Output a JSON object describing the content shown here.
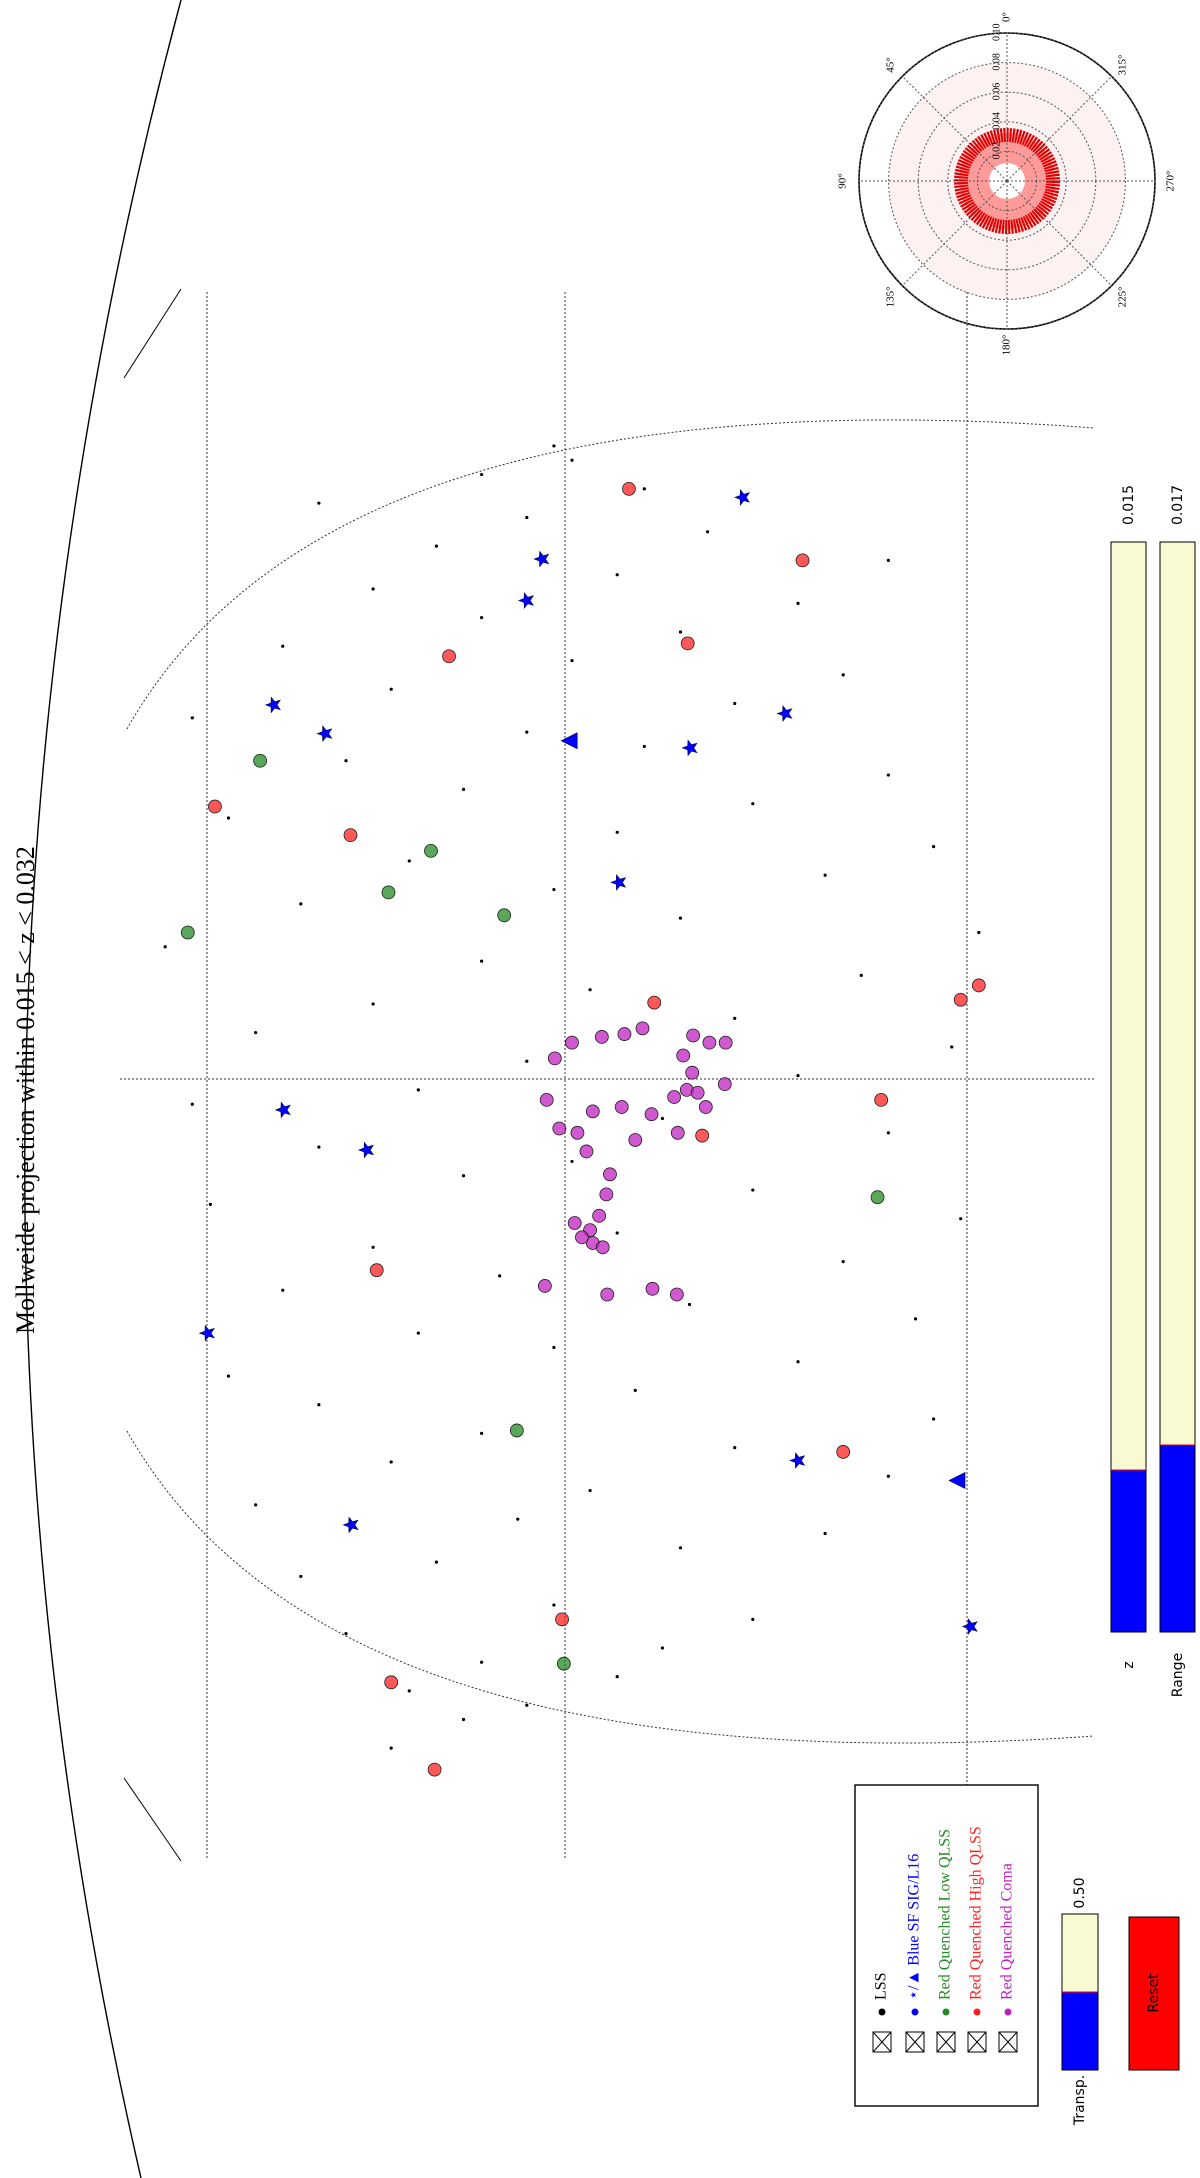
{
  "chart_data": {
    "type": "scatter",
    "title": "Mollweide projection within 0.015 < z < 0.032",
    "xlim": [
      0,
      100
    ],
    "ylim": [
      0,
      100
    ],
    "series": [
      {
        "name": "LSS",
        "color": "#000000",
        "marker": "o",
        "x": [
          6,
          8,
          9,
          10,
          11,
          12,
          13,
          14,
          15,
          16,
          18,
          19,
          20,
          21,
          22,
          23,
          24,
          25,
          26,
          27,
          28,
          29,
          30,
          31,
          32,
          33,
          34,
          35,
          36,
          37,
          38,
          39,
          40,
          41,
          42,
          43,
          44,
          45,
          46,
          47,
          48,
          49,
          50,
          51,
          52,
          53,
          54,
          55,
          56,
          57,
          58,
          59,
          60,
          61,
          62,
          63,
          64,
          65,
          66,
          67,
          68,
          69,
          70,
          71,
          72,
          73,
          74,
          75,
          76,
          77,
          78,
          79,
          80,
          81,
          82,
          83,
          84,
          85,
          86,
          87,
          88,
          89,
          90,
          91,
          92,
          93,
          94,
          95,
          96,
          97
        ],
        "y": [
          30,
          38,
          45,
          32,
          55,
          40,
          60,
          25,
          70,
          48,
          20,
          35,
          62,
          78,
          44,
          15,
          52,
          85,
          30,
          68,
          40,
          90,
          22,
          57,
          12,
          75,
          48,
          33,
          88,
          63,
          18,
          42,
          80,
          28,
          55,
          93,
          10,
          70,
          38,
          50,
          22,
          85,
          60,
          8,
          33,
          75,
          45,
          92,
          15,
          68,
          28,
          52,
          82,
          40,
          5,
          95,
          62,
          20,
          48,
          78,
          32,
          90,
          55,
          12,
          70,
          38,
          85,
          25,
          58,
          45,
          8,
          68,
          30,
          80,
          50,
          18,
          62,
          40,
          75,
          28,
          55,
          85,
          35,
          65,
          45,
          22,
          58,
          40,
          50,
          48
        ]
      },
      {
        "name": "⋆/▲ Blue SF SIG/L16",
        "color": "#0000ff",
        "markers": [
          "*",
          "*",
          "*",
          "*",
          "*",
          "*",
          "*",
          "*",
          "*",
          "*",
          "*",
          "*",
          "*",
          "*",
          "^",
          "^"
        ],
        "x": [
          93.4,
          89.1,
          86.2,
          78.3,
          75.9,
          78.9,
          76.9,
          66.5,
          50.6,
          47.8,
          35.0,
          26.1,
          21.6,
          14.5,
          76.4,
          24.7
        ],
        "y": [
          68.9,
          46.7,
          45.0,
          73.6,
          63.1,
          17.0,
          22.7,
          55.2,
          18.1,
          27.3,
          9.7,
          75.0,
          25.6,
          94.1,
          49.8,
          92.7
        ]
      },
      {
        "name": "Red Quenched Low QLSS",
        "color": "#228b22",
        "marker": "o",
        "x": [
          75.0,
          68.7,
          65.8,
          64.2,
          63.0,
          44.5,
          28.2,
          11.9
        ],
        "y": [
          15.5,
          34.4,
          29.7,
          42.5,
          7.5,
          83.8,
          43.9,
          49.1
        ]
      },
      {
        "name": "Red Quenched High QLSS",
        "color": "#ff2020",
        "marker": "o",
        "x": [
          94.0,
          89.0,
          83.2,
          82.3,
          71.8,
          69.8,
          58.1,
          58.3,
          59.3,
          48.8,
          51.3,
          39.4,
          26.7,
          15.0,
          10.6,
          4.5
        ],
        "y": [
          56.3,
          75.5,
          62.8,
          36.4,
          10.5,
          25.5,
          59.1,
          93.0,
          95.0,
          64.4,
          84.2,
          28.4,
          80.0,
          48.9,
          30.0,
          34.8
        ]
      },
      {
        "name": "Red Quenched Coma",
        "color": "#c020c0",
        "marker": "o",
        "x": [
          55.8,
          55.3,
          55.3,
          54.4,
          53.2,
          52.0,
          51.8,
          52.4,
          50.8,
          51.5,
          56.3,
          55.9,
          55.7,
          55.3,
          54.2,
          51.3,
          49.3,
          49.0,
          47.7,
          50.5,
          50.8,
          50.3,
          48.5,
          49.0,
          46.1,
          44.7,
          43.2,
          42.2,
          41.3,
          41.7,
          41.0,
          42.7,
          37.7,
          38.1,
          37.7,
          38.3
        ],
        "y": [
          63.4,
          65.2,
          67.0,
          62.3,
          63.3,
          62.7,
          63.9,
          66.9,
          64.8,
          61.3,
          57.8,
          55.8,
          53.3,
          50.0,
          48.1,
          47.2,
          48.6,
          50.6,
          51.6,
          52.3,
          55.5,
          58.8,
          57.0,
          61.7,
          54.2,
          53.8,
          53.0,
          52.0,
          52.3,
          51.1,
          53.4,
          50.3,
          61.6,
          58.9,
          53.9,
          47.0
        ]
      }
    ]
  },
  "sliders": [
    {
      "label": "z",
      "value": "0.015"
    },
    {
      "label": "Range",
      "value": "0.017"
    },
    {
      "label": "Transp.",
      "value": "0.50"
    }
  ],
  "button": "Reset",
  "inset": {
    "angle_labels": [
      "0°",
      "45°",
      "90°",
      "135°",
      "180°",
      "225°",
      "270°",
      "315°"
    ],
    "rlim": [
      0,
      0.1
    ],
    "rticks": [
      0.02,
      0.04,
      0.06,
      0.08,
      {
        "value": 0.1,
        "label": "0.10"
      }
    ]
  }
}
